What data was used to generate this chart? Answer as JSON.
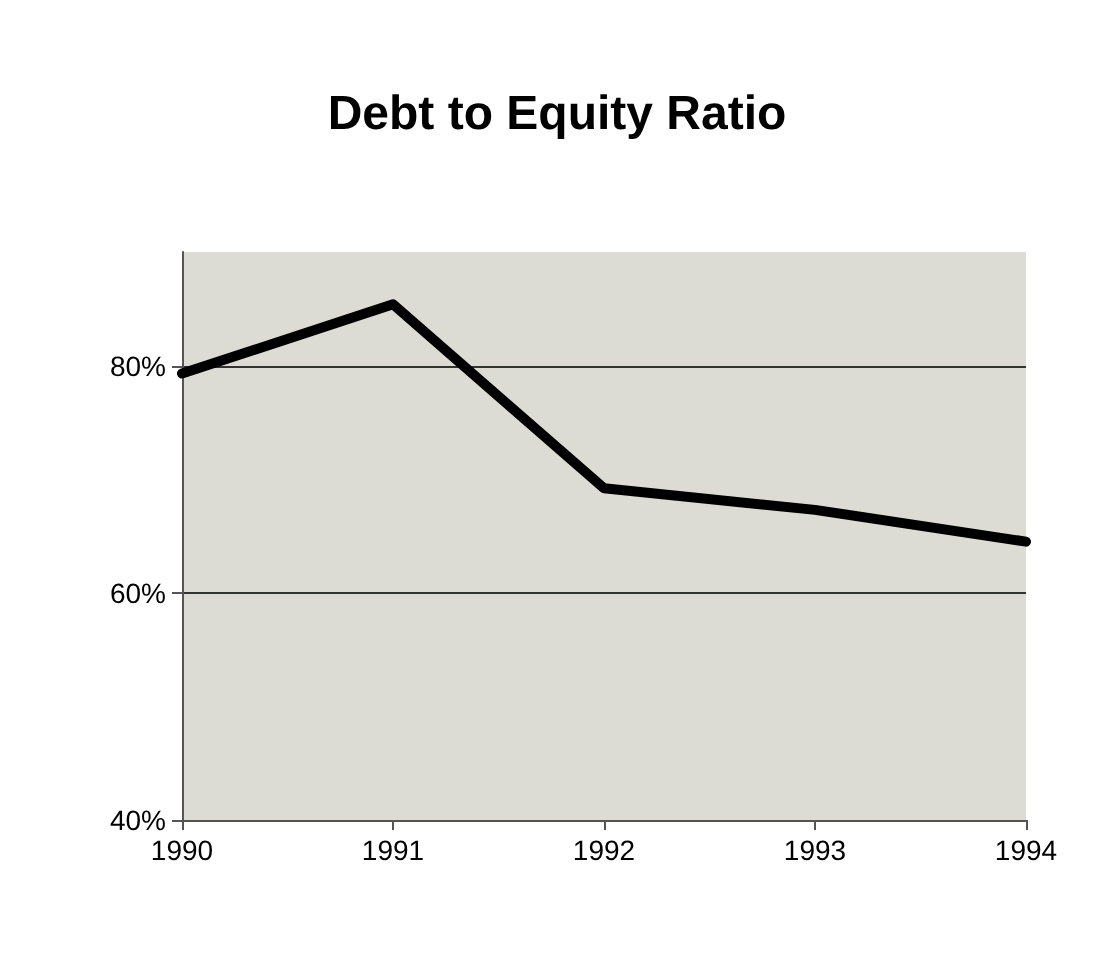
{
  "chart_data": {
    "type": "line",
    "title": "Debt to Equity Ratio",
    "x": [
      1990,
      1991,
      1992,
      1993,
      1994
    ],
    "series": [
      {
        "color": "#000000",
        "values": [
          79.3,
          85.4,
          69.2,
          67.3,
          64.5
        ]
      }
    ],
    "xlim": [
      1990,
      1994
    ],
    "xticks": [
      1990,
      1991,
      1992,
      1993,
      1994
    ],
    "ylim": [
      40,
      90
    ],
    "yticks": [
      {
        "value": 40,
        "label": "40%"
      },
      {
        "value": 60,
        "label": "60%"
      },
      {
        "value": 80,
        "label": "80%"
      }
    ],
    "grid": "y",
    "marker": "none",
    "line_style": "solid"
  }
}
